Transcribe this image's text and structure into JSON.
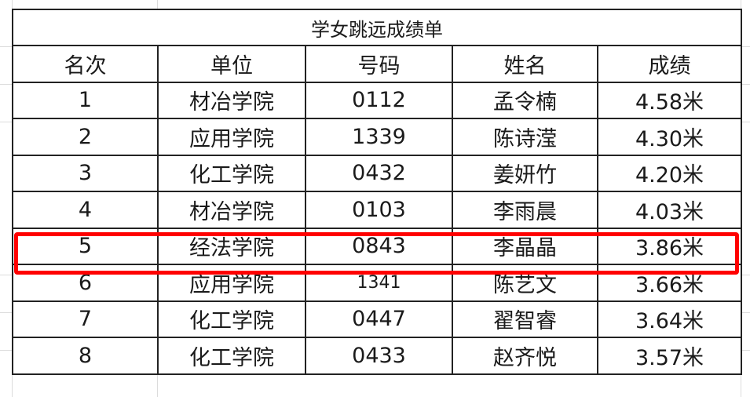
{
  "title": "学女跳远成绩单",
  "headers": [
    "名次",
    "单位",
    "号码",
    "姓名",
    "成绩"
  ],
  "rows": [
    [
      "1",
      "材冶学院",
      "0112",
      "孟令楠",
      "4.58米"
    ],
    [
      "2",
      "应用学院",
      "1339",
      "陈诗滢",
      "4.30米"
    ],
    [
      "3",
      "化工学院",
      "0432",
      "姜妍竹",
      "4.20米"
    ],
    [
      "4",
      "材冶学院",
      "0103",
      "李雨晨",
      "4.03米"
    ],
    [
      "5",
      "经法学院",
      "0843",
      "李晶晶",
      "3.86米"
    ],
    [
      "6",
      "应用学院",
      "1341",
      "陈艺文",
      "3.66米"
    ],
    [
      "7",
      "化工学院",
      "0447",
      "翟智睿",
      "3.64米"
    ],
    [
      "8",
      "化工学院",
      "0433",
      "赵齐悦",
      "3.57米"
    ]
  ],
  "highlight": {
    "row_rank": "5",
    "color": "#ff0000"
  }
}
